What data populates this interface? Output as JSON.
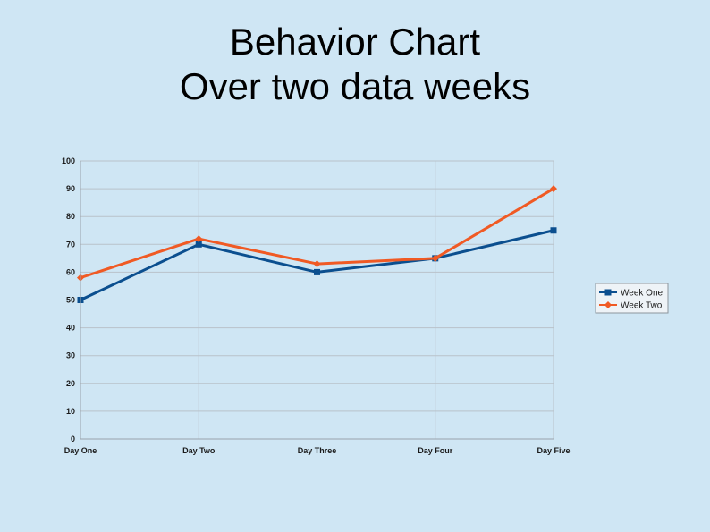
{
  "slide": {
    "title_line1": "Behavior Chart",
    "title_line2": "Over two data weeks"
  },
  "chart_data": {
    "type": "line",
    "title": "",
    "xlabel": "",
    "ylabel": "",
    "categories": [
      "Day One",
      "Day Two",
      "Day Three",
      "Day Four",
      "Day Five"
    ],
    "ylim": [
      0,
      100
    ],
    "yticks": [
      0,
      10,
      20,
      30,
      40,
      50,
      60,
      70,
      80,
      90,
      100
    ],
    "grid": true,
    "legend_position": "right",
    "series": [
      {
        "name": "Week One",
        "values": [
          50,
          70,
          60,
          65,
          75
        ],
        "color": "#0b4f8f",
        "marker": "square"
      },
      {
        "name": "Week Two",
        "values": [
          58,
          72,
          63,
          65,
          90
        ],
        "color": "#f05a24",
        "marker": "diamond"
      }
    ]
  }
}
